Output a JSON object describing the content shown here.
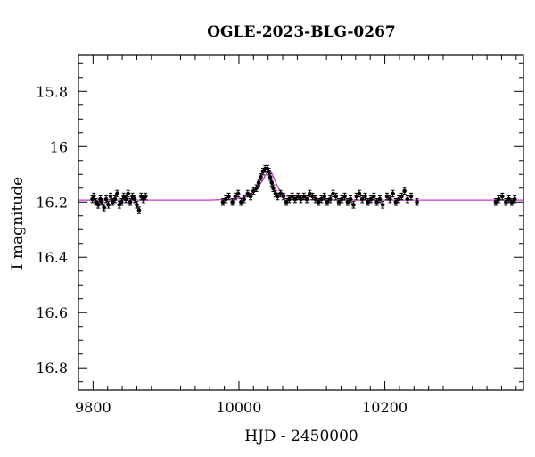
{
  "chart_data": {
    "type": "scatter",
    "title": "OGLE-2023-BLG-0267",
    "xlabel": "HJD - 2450000",
    "ylabel": "I magnitude",
    "xlim": [
      9780,
      10390
    ],
    "ylim": [
      16.88,
      15.67
    ],
    "y_inverted": true,
    "grid": false,
    "x_ticks": [
      9800,
      10000,
      10200
    ],
    "x_tick_labels": [
      "9800",
      "10000",
      "10200"
    ],
    "y_ticks": [
      15.8,
      16.0,
      16.2,
      16.4,
      16.6,
      16.8
    ],
    "y_tick_labels": [
      "15.8",
      "16",
      "16.2",
      "16.4",
      "16.6",
      "16.8"
    ],
    "colors": {
      "points": "#000000",
      "model": "#cc33cc"
    },
    "series": [
      {
        "type": "scatter_errorbars",
        "color": "#000000",
        "x": [
          9799,
          9801,
          9804,
          9807,
          9810,
          9812,
          9815,
          9818,
          9821,
          9824,
          9827,
          9830,
          9833,
          9836,
          9839,
          9842,
          9845,
          9848,
          9851,
          9854,
          9857,
          9860,
          9863,
          9866,
          9869,
          9872,
          9978,
          9982,
          9986,
          9991,
          9995,
          9999,
          10003,
          10007,
          10012,
          10016,
          10020,
          10024,
          10027,
          10030,
          10033,
          10036,
          10039,
          10041,
          10043,
          10045,
          10047,
          10050,
          10053,
          10057,
          10061,
          10065,
          10069,
          10073,
          10077,
          10081,
          10085,
          10089,
          10093,
          10097,
          10101,
          10105,
          10109,
          10113,
          10117,
          10121,
          10125,
          10129,
          10133,
          10137,
          10141,
          10145,
          10149,
          10153,
          10157,
          10161,
          10165,
          10169,
          10173,
          10177,
          10181,
          10185,
          10189,
          10193,
          10197,
          10203,
          10207,
          10211,
          10215,
          10219,
          10223,
          10227,
          10231,
          10236,
          10244,
          10352,
          10356,
          10361,
          10366,
          10370,
          10374,
          10378
        ],
        "y": [
          16.19,
          16.18,
          16.2,
          16.21,
          16.19,
          16.2,
          16.22,
          16.19,
          16.21,
          16.18,
          16.2,
          16.19,
          16.17,
          16.21,
          16.2,
          16.18,
          16.19,
          16.17,
          16.2,
          16.18,
          16.19,
          16.21,
          16.23,
          16.18,
          16.19,
          16.18,
          16.2,
          16.19,
          16.18,
          16.2,
          16.18,
          16.17,
          16.2,
          16.19,
          16.17,
          16.18,
          16.16,
          16.15,
          16.13,
          16.11,
          16.09,
          16.08,
          16.08,
          16.09,
          16.11,
          16.13,
          16.15,
          16.17,
          16.18,
          16.17,
          16.18,
          16.2,
          16.19,
          16.18,
          16.19,
          16.18,
          16.19,
          16.18,
          16.19,
          16.17,
          16.18,
          16.19,
          16.2,
          16.19,
          16.18,
          16.2,
          16.19,
          16.17,
          16.18,
          16.2,
          16.19,
          16.18,
          16.2,
          16.19,
          16.21,
          16.18,
          16.17,
          16.19,
          16.18,
          16.2,
          16.19,
          16.18,
          16.2,
          16.19,
          16.21,
          16.18,
          16.19,
          16.17,
          16.2,
          16.19,
          16.18,
          16.16,
          16.19,
          16.18,
          16.2,
          16.2,
          16.19,
          16.18,
          16.2,
          16.19,
          16.2,
          16.19
        ],
        "yerr": 0.012
      },
      {
        "type": "line",
        "color": "#cc33cc",
        "x": [
          9780,
          9960,
          9990,
          10005,
          10015,
          10022,
          10028,
          10033,
          10037,
          10041,
          10045,
          10049,
          10054,
          10060,
          10068,
          10080,
          10110,
          10390
        ],
        "y": [
          16.193,
          16.193,
          16.19,
          16.185,
          16.175,
          16.16,
          16.14,
          16.12,
          16.1,
          16.085,
          16.095,
          16.12,
          16.15,
          16.17,
          16.182,
          16.19,
          16.193,
          16.193
        ]
      }
    ]
  }
}
